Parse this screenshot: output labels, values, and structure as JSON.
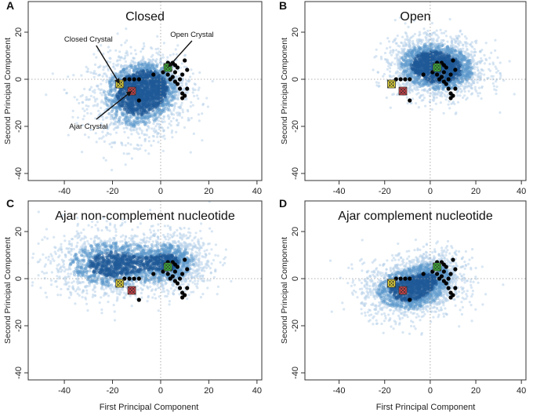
{
  "figure": {
    "shared_xlabel": "First Principal Component",
    "shared_ylabel": "Second Principal Component"
  },
  "colors": {
    "cloud_light": "#b8d2ea",
    "cloud_mid": "#5e98cc",
    "cloud_dark": "#1f5a98",
    "closed_marker": "#f4e63a",
    "open_marker": "#3fc43a",
    "ajar_marker": "#e0434b",
    "points": "#000000"
  },
  "chart_data": [
    {
      "type": "scatter",
      "panel": "A",
      "title": "Closed",
      "xlabel": "",
      "ylabel": "Second Principal Component",
      "xlim": [
        -55,
        42
      ],
      "ylim": [
        -43,
        33
      ],
      "xticks": [
        -40,
        -20,
        0,
        20,
        40
      ],
      "yticks": [
        -40,
        -20,
        0,
        20
      ],
      "show_xtick_labels": true,
      "show_ylabel": true,
      "density_clusters": [
        {
          "cx": -10,
          "cy": -8,
          "sx": 10,
          "sy": 9,
          "weight": 1.0
        },
        {
          "cx": -4,
          "cy": -2,
          "sx": 7,
          "sy": 6,
          "weight": 0.6
        }
      ],
      "annotations": [
        {
          "text": "Closed Crystal",
          "tx": -30,
          "ty": 16,
          "ax": -17,
          "ay": -2
        },
        {
          "text": "Open Crystal",
          "tx": 13,
          "ty": 18,
          "ax": 3,
          "ay": 5
        },
        {
          "text": "Ajar Crystal",
          "tx": -30,
          "ty": -21,
          "ax": -12,
          "ay": -5
        }
      ]
    },
    {
      "type": "scatter",
      "panel": "B",
      "title": "Open",
      "xlabel": "",
      "ylabel": "Second Principal Component",
      "xlim": [
        -55,
        42
      ],
      "ylim": [
        -43,
        33
      ],
      "xticks": [
        -40,
        -20,
        0,
        20,
        40
      ],
      "yticks": [
        -40,
        -20,
        0,
        20
      ],
      "show_xtick_labels": true,
      "show_ylabel": true,
      "density_clusters": [
        {
          "cx": 5,
          "cy": 4,
          "sx": 10,
          "sy": 6,
          "weight": 1.0
        },
        {
          "cx": -2,
          "cy": 8,
          "sx": 9,
          "sy": 6,
          "weight": 0.5
        }
      ],
      "annotations": []
    },
    {
      "type": "scatter",
      "panel": "C",
      "title": "Ajar non-complement nucleotide",
      "xlabel": "First Principal Component",
      "ylabel": "Second Principal Component",
      "xlim": [
        -55,
        42
      ],
      "ylim": [
        -43,
        33
      ],
      "xticks": [
        -40,
        -20,
        0,
        20,
        40
      ],
      "yticks": [
        -40,
        -20,
        0,
        20
      ],
      "show_xtick_labels": true,
      "show_ylabel": true,
      "density_clusters": [
        {
          "cx": -20,
          "cy": 6,
          "sx": 13,
          "sy": 7,
          "weight": 1.0
        },
        {
          "cx": 5,
          "cy": 7,
          "sx": 8,
          "sy": 6,
          "weight": 0.7
        }
      ],
      "annotations": []
    },
    {
      "type": "scatter",
      "panel": "D",
      "title": "Ajar complement nucleotide",
      "xlabel": "First Principal Component",
      "ylabel": "Second Principal Component",
      "xlim": [
        -55,
        42
      ],
      "ylim": [
        -43,
        33
      ],
      "xticks": [
        -40,
        -20,
        0,
        20,
        40
      ],
      "yticks": [
        -40,
        -20,
        0,
        20
      ],
      "show_xtick_labels": true,
      "show_ylabel": true,
      "density_clusters": [
        {
          "cx": -10,
          "cy": -5,
          "sx": 10,
          "sy": 6,
          "weight": 1.0
        },
        {
          "cx": 2,
          "cy": 2,
          "sx": 7,
          "sy": 5,
          "weight": 0.5
        }
      ],
      "annotations": []
    }
  ],
  "reference_points": {
    "closed_crystal": {
      "x": -17,
      "y": -2
    },
    "open_crystal": {
      "x": 3,
      "y": 5
    },
    "ajar_crystal": {
      "x": -12,
      "y": -5
    },
    "black_points": [
      {
        "x": -15,
        "y": 0
      },
      {
        "x": -13,
        "y": 0
      },
      {
        "x": -11,
        "y": 0
      },
      {
        "x": -9,
        "y": 0
      },
      {
        "x": -9,
        "y": -9
      },
      {
        "x": -3,
        "y": 2
      },
      {
        "x": 1,
        "y": 3
      },
      {
        "x": 2,
        "y": 6
      },
      {
        "x": 3,
        "y": 2
      },
      {
        "x": 4,
        "y": 0
      },
      {
        "x": 4,
        "y": 4
      },
      {
        "x": 5,
        "y": 7
      },
      {
        "x": 5,
        "y": 1
      },
      {
        "x": 6,
        "y": -1
      },
      {
        "x": 6,
        "y": 3
      },
      {
        "x": 7,
        "y": -2
      },
      {
        "x": 7,
        "y": 5
      },
      {
        "x": 8,
        "y": 0
      },
      {
        "x": 8,
        "y": -4
      },
      {
        "x": 9,
        "y": 2
      },
      {
        "x": 9,
        "y": -6
      },
      {
        "x": 10,
        "y": -7
      },
      {
        "x": 10,
        "y": 8
      },
      {
        "x": 11,
        "y": -4
      },
      {
        "x": 11,
        "y": 4
      },
      {
        "x": 9,
        "y": -8
      },
      {
        "x": 6,
        "y": 6
      },
      {
        "x": 3,
        "y": 7
      }
    ]
  }
}
